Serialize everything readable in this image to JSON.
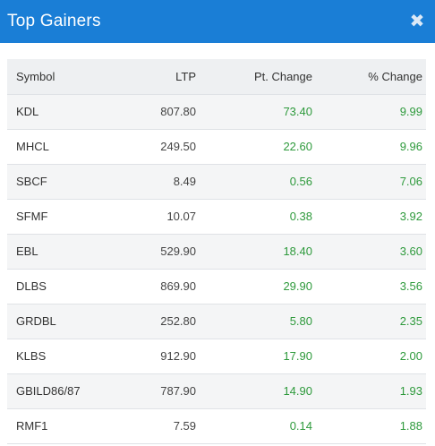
{
  "dialog": {
    "title": "Top Gainers",
    "close_icon": "close-icon",
    "accent_color": "#1a7ed6",
    "positive_color": "#2e9a3c"
  },
  "table": {
    "headers": {
      "symbol": "Symbol",
      "ltp": "LTP",
      "pt_change": "Pt. Change",
      "pct_change": "% Change"
    },
    "rows": [
      {
        "symbol": "KDL",
        "ltp": "807.80",
        "pt_change": "73.40",
        "pct_change": "9.99"
      },
      {
        "symbol": "MHCL",
        "ltp": "249.50",
        "pt_change": "22.60",
        "pct_change": "9.96"
      },
      {
        "symbol": "SBCF",
        "ltp": "8.49",
        "pt_change": "0.56",
        "pct_change": "7.06"
      },
      {
        "symbol": "SFMF",
        "ltp": "10.07",
        "pt_change": "0.38",
        "pct_change": "3.92"
      },
      {
        "symbol": "EBL",
        "ltp": "529.90",
        "pt_change": "18.40",
        "pct_change": "3.60"
      },
      {
        "symbol": "DLBS",
        "ltp": "869.90",
        "pt_change": "29.90",
        "pct_change": "3.56"
      },
      {
        "symbol": "GRDBL",
        "ltp": "252.80",
        "pt_change": "5.80",
        "pct_change": "2.35"
      },
      {
        "symbol": "KLBS",
        "ltp": "912.90",
        "pt_change": "17.90",
        "pct_change": "2.00"
      },
      {
        "symbol": "GBILD86/87",
        "ltp": "787.90",
        "pt_change": "14.90",
        "pct_change": "1.93"
      },
      {
        "symbol": "RMF1",
        "ltp": "7.59",
        "pt_change": "0.14",
        "pct_change": "1.88"
      }
    ]
  }
}
